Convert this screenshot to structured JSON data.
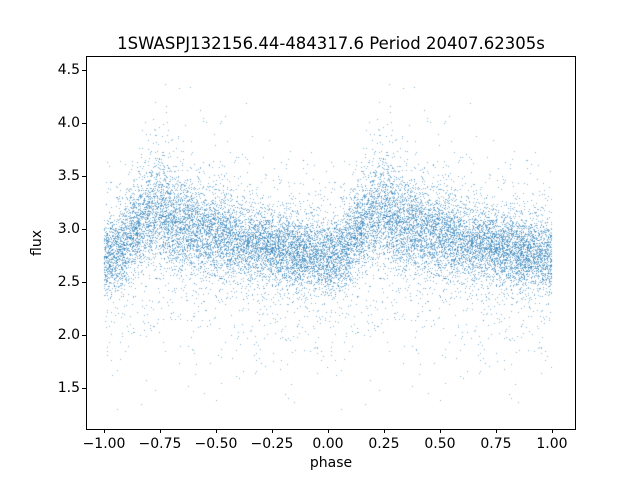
{
  "chart_data": {
    "type": "scatter",
    "title": "1SWASPJ132156.44-484317.6 Period 20407.62305s",
    "xlabel": "phase",
    "ylabel": "flux",
    "xlim": [
      -1.076,
      1.103
    ],
    "ylim": [
      1.11,
      4.62
    ],
    "xticks": [
      -1.0,
      -0.75,
      -0.5,
      -0.25,
      0.0,
      0.25,
      0.5,
      0.75,
      1.0
    ],
    "xtick_labels": [
      "−1.00",
      "−0.75",
      "−0.50",
      "−0.25",
      "0.00",
      "0.25",
      "0.50",
      "0.75",
      "1.00"
    ],
    "yticks": [
      1.5,
      2.0,
      2.5,
      3.0,
      3.5,
      4.0,
      4.5
    ],
    "ytick_labels": [
      "1.5",
      "2.0",
      "2.5",
      "3.0",
      "3.5",
      "4.0",
      "4.5"
    ],
    "grid": false,
    "legend": null,
    "marker_color": "#1f77b4",
    "marker_alpha": 0.55,
    "marker_size_px": 1,
    "points_per_fold": 9000,
    "n_points_plotted": 18000,
    "fold_duplicated": true,
    "seed": 20407,
    "flux_range": [
      1.27,
      4.45
    ],
    "mean_curve": {
      "phase": [
        0.0,
        0.05,
        0.08,
        0.12,
        0.16,
        0.2,
        0.24,
        0.28,
        0.33,
        0.4,
        0.5,
        0.6,
        0.7,
        0.8,
        0.9,
        0.97,
        1.0
      ],
      "flux": [
        2.74,
        2.76,
        2.82,
        2.93,
        3.04,
        3.11,
        3.14,
        3.1,
        3.05,
        3.0,
        2.95,
        2.9,
        2.85,
        2.8,
        2.76,
        2.74,
        2.74
      ]
    },
    "sigma_curve": {
      "phase": [
        0.0,
        0.1,
        0.18,
        0.3,
        0.45,
        0.6,
        0.8,
        1.0
      ],
      "sigma": [
        0.175,
        0.195,
        0.235,
        0.23,
        0.2,
        0.185,
        0.175,
        0.175
      ]
    },
    "noise_mixture": [
      [
        0.82,
        0.0,
        1.0
      ],
      [
        0.12,
        0.0,
        2.1
      ],
      [
        0.04,
        -0.55,
        2.4
      ],
      [
        0.02,
        0.3,
        2.2
      ]
    ],
    "description": "Phase-folded SuperWASP light curve plotted from phase −1 to 1 (data duplicated); dense band near flux 2.75 with brightening bump peaking near phase 0.25 and −0.75, scatter outliers from ~1.3 to ~4.45"
  }
}
